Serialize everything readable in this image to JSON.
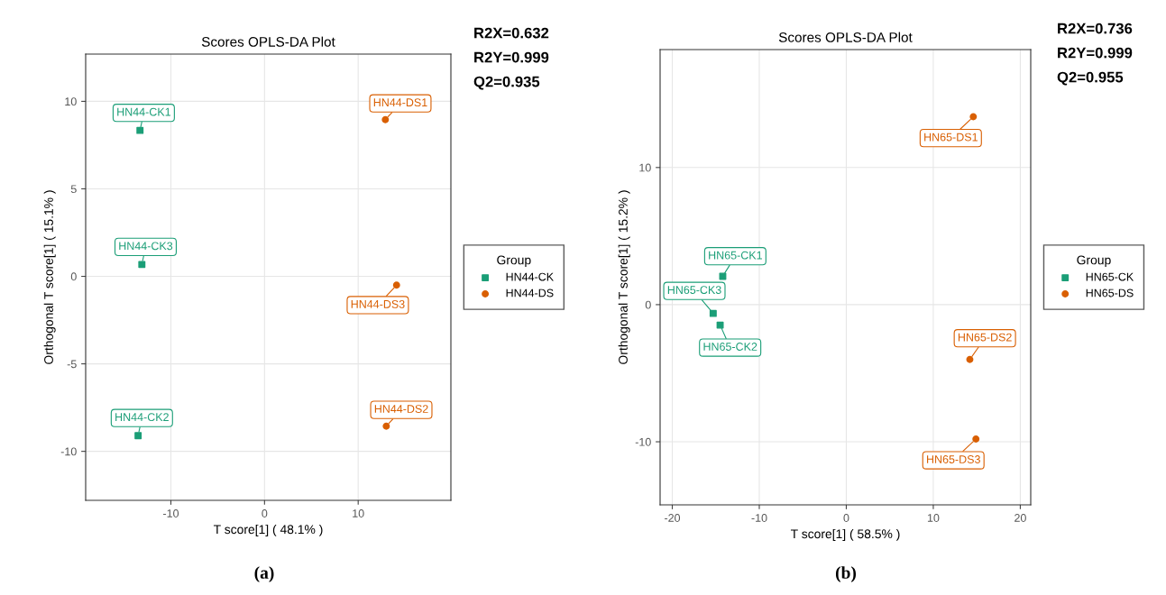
{
  "chart_data": [
    {
      "type": "scatter",
      "title": "Scores OPLS-DA Plot",
      "xlabel": "T score[1] ( 48.1% )",
      "ylabel": "Orthogonal T score[1] ( 15.1% )",
      "legend_title": "Group",
      "legend": "right",
      "grid": true,
      "xlim": [
        -19.1,
        19.9
      ],
      "ylim": [
        -12.8,
        12.7
      ],
      "xticks": [
        -10,
        0,
        10
      ],
      "yticks": [
        -10,
        -5,
        0,
        5,
        10
      ],
      "series": [
        {
          "name": "HN44-CK",
          "color": "#1b9e77",
          "marker": "square",
          "x": [
            -13.3,
            -13.5,
            -13.1
          ],
          "values": [
            8.34,
            -9.1,
            0.68
          ]
        },
        {
          "name": "HN44-DS",
          "color": "#d95f02",
          "marker": "circle",
          "x": [
            12.9,
            13.0,
            14.1
          ],
          "values": [
            8.95,
            -8.56,
            -0.5
          ]
        }
      ],
      "annotations": [
        {
          "text": "HN44-CK1",
          "x": -13.3,
          "y": 8.34
        },
        {
          "text": "HN44-CK2",
          "x": -13.5,
          "y": -9.1
        },
        {
          "text": "HN44-CK3",
          "x": -13.1,
          "y": 0.68
        },
        {
          "text": "HN44-DS1",
          "x": 12.9,
          "y": 8.95
        },
        {
          "text": "HN44-DS2",
          "x": 13.0,
          "y": -8.56
        },
        {
          "text": "HN44-DS3",
          "x": 14.1,
          "y": -0.5
        },
        "R2X=0.632",
        "R2Y=0.999",
        "Q2=0.935",
        "(a)"
      ]
    },
    {
      "type": "scatter",
      "title": "Scores OPLS-DA Plot",
      "xlabel": "T score[1] ( 58.5% )",
      "ylabel": "Orthogonal T score[1] ( 15.2% )",
      "legend_title": "Group",
      "legend": "right",
      "grid": true,
      "xlim": [
        -21.4,
        21.2
      ],
      "ylim": [
        -14.6,
        18.6
      ],
      "xticks": [
        -20,
        -10,
        0,
        10,
        20
      ],
      "yticks": [
        -10,
        0,
        10
      ],
      "series": [
        {
          "name": "HN65-CK",
          "color": "#1b9e77",
          "marker": "square",
          "x": [
            -14.2,
            -14.5,
            -15.3
          ],
          "values": [
            2.07,
            -1.49,
            -0.64
          ]
        },
        {
          "name": "HN65-DS",
          "color": "#d95f02",
          "marker": "circle",
          "x": [
            14.6,
            14.2,
            14.9
          ],
          "values": [
            13.7,
            -4.0,
            -9.8
          ]
        }
      ],
      "annotations": [
        {
          "text": "HN65-CK1",
          "x": -14.2,
          "y": 2.07
        },
        {
          "text": "HN65-CK2",
          "x": -14.5,
          "y": -1.49
        },
        {
          "text": "HN65-CK3",
          "x": -15.3,
          "y": -0.64
        },
        {
          "text": "HN65-DS1",
          "x": 14.6,
          "y": 13.7
        },
        {
          "text": "HN65-DS2",
          "x": 14.2,
          "y": -4.0
        },
        {
          "text": "HN65-DS3",
          "x": 14.9,
          "y": -9.8
        },
        "R2X=0.736",
        "R2Y=0.999",
        "Q2=0.955",
        "(b)"
      ]
    }
  ]
}
